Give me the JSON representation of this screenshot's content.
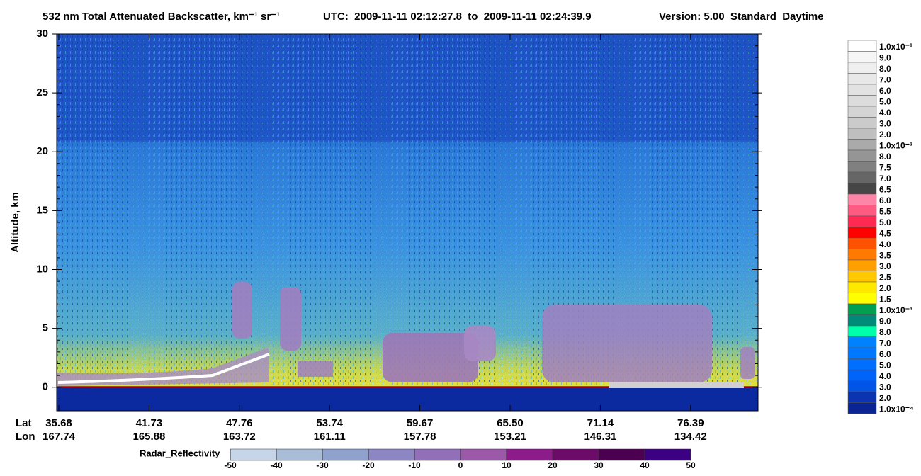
{
  "chart_data": {
    "type": "heatmap",
    "title": "532 nm Total Attenuated Backscatter, km⁻¹ sr⁻¹",
    "subtitle": "UTC:  2009-11-11 02:12:27.8  to  2009-11-11 02:24:39.9",
    "version": "Version: 5.00  Standard  Daytime",
    "ylabel": "Altitude, km",
    "ylim": [
      -2,
      30
    ],
    "yticks": [
      0,
      5,
      10,
      15,
      20,
      25,
      30
    ],
    "x_row_labels": [
      "Lat",
      "Lon"
    ],
    "lat": [
      "35.68",
      "41.73",
      "47.76",
      "53.74",
      "59.67",
      "65.50",
      "71.14",
      "76.39"
    ],
    "lon": [
      "167.74",
      "165.88",
      "163.72",
      "161.11",
      "157.78",
      "153.21",
      "146.31",
      "134.42"
    ],
    "colorbar": {
      "labels": [
        "1.0x10⁻¹",
        "9.0",
        "8.0",
        "7.0",
        "6.0",
        "5.0",
        "4.0",
        "3.0",
        "2.0",
        "1.0x10⁻²",
        "8.0",
        "7.5",
        "7.0",
        "6.5",
        "6.0",
        "5.5",
        "5.0",
        "4.5",
        "4.0",
        "3.5",
        "3.0",
        "2.5",
        "2.0",
        "1.5",
        "1.0x10⁻³",
        "9.0",
        "8.0",
        "7.0",
        "6.0",
        "5.0",
        "4.0",
        "3.0",
        "2.0",
        "1.0x10⁻⁴"
      ],
      "colors": [
        "#ffffff",
        "#f6f6f6",
        "#efefef",
        "#e8e8e8",
        "#e2e2e2",
        "#dcdcdc",
        "#d4d4d4",
        "#cbcbcb",
        "#bfbfbf",
        "#aaaaaa",
        "#959595",
        "#808080",
        "#666666",
        "#464646",
        "#ff85a8",
        "#ff5a82",
        "#ff2a52",
        "#ff0000",
        "#ff5200",
        "#ff7a00",
        "#ffa000",
        "#ffc800",
        "#ffe800",
        "#ffff00",
        "#00a050",
        "#008a7a",
        "#00ffaa",
        "#0082ff",
        "#0078ff",
        "#006eff",
        "#0064f8",
        "#0054e8",
        "#0a34b0",
        "#0a2494"
      ]
    },
    "radar": {
      "label": "Radar_Reflectivity",
      "ticks": [
        -50,
        -40,
        -30,
        -20,
        -10,
        0,
        10,
        20,
        30,
        40,
        50
      ],
      "colors": [
        "#c6d6e8",
        "#a9bcd8",
        "#8fa2cc",
        "#8c86c2",
        "#9270b8",
        "#9a5aa8",
        "#8c1c8a",
        "#6c0c68",
        "#4c0050",
        "#3c0082"
      ]
    }
  }
}
